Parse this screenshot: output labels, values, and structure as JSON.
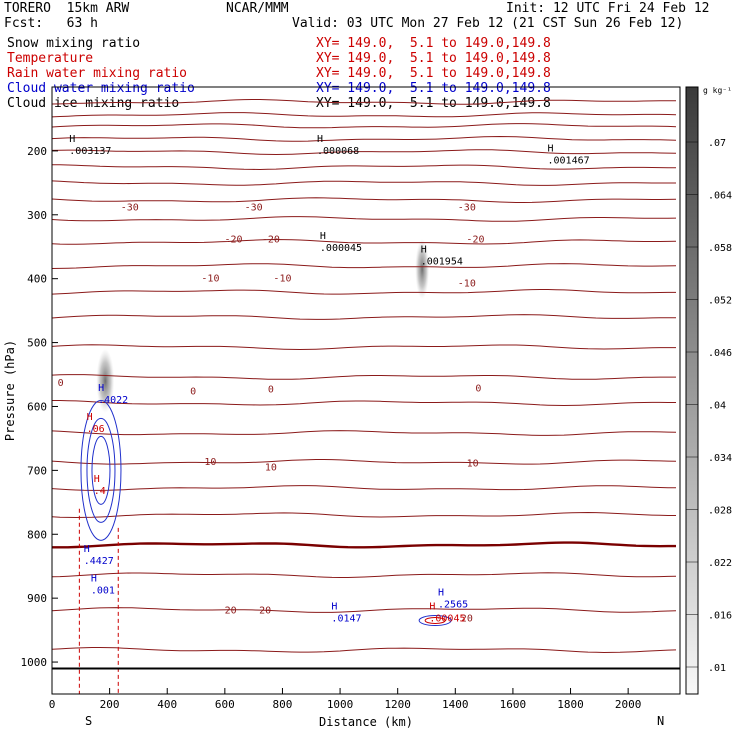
{
  "header": {
    "model": "TORERO  15km ARW",
    "org": "NCAR/MMM",
    "init": "Init: 12 UTC Fri 24 Feb 12",
    "fcst": "Fcst:   63 h",
    "valid": "Valid: 03 UTC Mon 27 Feb 12 (21 CST Sun 26 Feb 12)"
  },
  "fields": [
    {
      "name": "Snow mixing ratio",
      "xy": "XY= 149.0,  5.1 to 149.0,149.8",
      "color": "#000000"
    },
    {
      "name": "Temperature",
      "xy": "XY= 149.0,  5.1 to 149.0,149.8",
      "color": "#cc0000"
    },
    {
      "name": "Rain water mixing ratio",
      "xy": "XY= 149.0,  5.1 to 149.0,149.8",
      "color": "#cc0000"
    },
    {
      "name": "Cloud water mixing ratio",
      "xy": "XY= 149.0,  5.1 to 149.0,149.8",
      "color": "#0000cc"
    },
    {
      "name": "Cloud ice mixing ratio",
      "xy": "XY= 149.0,  5.1 to 149.0,149.8",
      "color": "#000000"
    }
  ],
  "chart_data": {
    "type": "cross-section",
    "xlabel": "Distance (km)",
    "ylabel": "Pressure (hPa)",
    "xlim": [
      0,
      2180
    ],
    "ylim": [
      1050,
      100
    ],
    "x_ticks": [
      0,
      200,
      400,
      600,
      800,
      1000,
      1200,
      1400,
      1600,
      1800,
      2000
    ],
    "y_ticks": [
      200,
      300,
      400,
      500,
      600,
      700,
      800,
      900,
      1000
    ],
    "x_end_labels": [
      "S",
      "N"
    ],
    "colorbar": {
      "unit": "g kg⁻¹",
      "labels": [
        ".07",
        ".064",
        ".058",
        ".052",
        ".046",
        ".04",
        ".034",
        ".028",
        ".022",
        ".016",
        ".01"
      ]
    },
    "isotherm_labels": [
      {
        "text": "-30",
        "x": 270,
        "p": 287
      },
      {
        "text": "-30",
        "x": 700,
        "p": 287
      },
      {
        "text": "-30",
        "x": 1440,
        "p": 287
      },
      {
        "text": "-20",
        "x": 630,
        "p": 337
      },
      {
        "text": "-20",
        "x": 760,
        "p": 337
      },
      {
        "text": "-20",
        "x": 1470,
        "p": 337
      },
      {
        "text": "-10",
        "x": 550,
        "p": 398
      },
      {
        "text": "-10",
        "x": 800,
        "p": 398
      },
      {
        "text": "-10",
        "x": 1440,
        "p": 406
      },
      {
        "text": "0",
        "x": 30,
        "p": 562
      },
      {
        "text": "0",
        "x": 490,
        "p": 575
      },
      {
        "text": "0",
        "x": 760,
        "p": 572
      },
      {
        "text": "0",
        "x": 1480,
        "p": 570
      },
      {
        "text": "10",
        "x": 550,
        "p": 685
      },
      {
        "text": "10",
        "x": 760,
        "p": 694
      },
      {
        "text": "10",
        "x": 1460,
        "p": 688
      },
      {
        "text": "20",
        "x": 620,
        "p": 918
      },
      {
        "text": "20",
        "x": 740,
        "p": 918
      },
      {
        "text": "20",
        "x": 1440,
        "p": 930
      }
    ],
    "highs": [
      {
        "text": ".003137",
        "x": 60,
        "p": 200,
        "color": "#000000"
      },
      {
        "text": ".000068",
        "x": 920,
        "p": 200,
        "color": "#000000"
      },
      {
        "text": ".001467",
        "x": 1720,
        "p": 215,
        "color": "#000000"
      },
      {
        "text": ".000045",
        "x": 930,
        "p": 352,
        "color": "#000000"
      },
      {
        "text": ".001954",
        "x": 1280,
        "p": 373,
        "color": "#000000"
      },
      {
        "text": ".4022",
        "x": 160,
        "p": 590,
        "color": "#0000cc"
      },
      {
        "text": ".06",
        "x": 120,
        "p": 635,
        "color": "#cc0000"
      },
      {
        "text": ".4",
        "x": 145,
        "p": 732,
        "color": "#cc0000"
      },
      {
        "text": ".4427",
        "x": 110,
        "p": 842,
        "color": "#0000cc"
      },
      {
        "text": ".001",
        "x": 135,
        "p": 888,
        "color": "#0000cc"
      },
      {
        "text": ".0147",
        "x": 970,
        "p": 932,
        "color": "#0000cc"
      },
      {
        "text": ".2565",
        "x": 1340,
        "p": 910,
        "color": "#0000cc"
      },
      {
        "text": ".00045",
        "x": 1310,
        "p": 932,
        "color": "#cc0000"
      }
    ]
  }
}
